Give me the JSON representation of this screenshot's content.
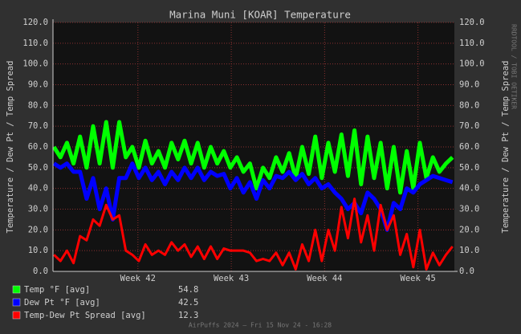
{
  "chart_data": {
    "type": "line",
    "title": "Marina Muni [KOAR] Temperature",
    "y_label": "Temperature / Dew Pt / Temp Spread",
    "watermark": "RRDTOOL / TOBI OETIKER",
    "footer": "AirPuffs 2024 — Fri 15 Nov 24 - 16:28",
    "x": [
      41.1,
      41.17,
      41.24,
      41.31,
      41.38,
      41.45,
      41.52,
      41.59,
      41.66,
      41.73,
      41.8,
      41.87,
      41.94,
      42.01,
      42.08,
      42.15,
      42.22,
      42.29,
      42.36,
      42.43,
      42.5,
      42.57,
      42.64,
      42.71,
      42.78,
      42.85,
      42.92,
      42.99,
      43.06,
      43.13,
      43.2,
      43.27,
      43.34,
      43.41,
      43.48,
      43.55,
      43.62,
      43.69,
      43.76,
      43.83,
      43.9,
      43.97,
      44.04,
      44.11,
      44.18,
      44.25,
      44.32,
      44.39,
      44.46,
      44.53,
      44.6,
      44.67,
      44.74,
      44.81,
      44.88,
      44.95,
      45.02,
      45.09,
      45.16,
      45.23,
      45.3,
      45.37
    ],
    "xlim": [
      41.09,
      45.39
    ],
    "xticks": [
      {
        "value": 42,
        "label": "Week 42"
      },
      {
        "value": 43,
        "label": "Week 43"
      },
      {
        "value": 44,
        "label": "Week 44"
      },
      {
        "value": 45,
        "label": "Week 45"
      }
    ],
    "ylim": [
      0,
      120
    ],
    "yticks": [
      {
        "value": 0,
        "label": "0.0"
      },
      {
        "value": 10,
        "label": "10.0"
      },
      {
        "value": 20,
        "label": "20.0"
      },
      {
        "value": 30,
        "label": "30.0"
      },
      {
        "value": 40,
        "label": "40.0"
      },
      {
        "value": 50,
        "label": "50.0"
      },
      {
        "value": 60,
        "label": "60.0"
      },
      {
        "value": 70,
        "label": "70.0"
      },
      {
        "value": 80,
        "label": "80.0"
      },
      {
        "value": 90,
        "label": "90.0"
      },
      {
        "value": 100,
        "label": "100.0"
      },
      {
        "value": 110,
        "label": "110.0"
      },
      {
        "value": 120,
        "label": "120.0"
      }
    ],
    "grid": true,
    "series": [
      {
        "name": "Temp °F [avg]",
        "color": "#00ff00",
        "avg": 54.8,
        "values": [
          60,
          55,
          62,
          52,
          65,
          50,
          70,
          52,
          72,
          50,
          72,
          55,
          60,
          50,
          63,
          52,
          58,
          50,
          62,
          54,
          63,
          52,
          62,
          50,
          60,
          52,
          58,
          50,
          55,
          48,
          52,
          40,
          50,
          45,
          55,
          48,
          57,
          45,
          60,
          47,
          65,
          45,
          62,
          48,
          66,
          46,
          68,
          42,
          65,
          45,
          62,
          40,
          60,
          38,
          58,
          40,
          62,
          45,
          55,
          48,
          52,
          55
        ]
      },
      {
        "name": "Dew Pt °F [avg]",
        "color": "#0000ff",
        "avg": 42.5,
        "values": [
          52,
          50,
          52,
          48,
          48,
          35,
          45,
          30,
          40,
          25,
          45,
          45,
          52,
          45,
          50,
          44,
          48,
          42,
          48,
          44,
          50,
          45,
          50,
          44,
          48,
          46,
          47,
          40,
          45,
          38,
          43,
          35,
          44,
          40,
          46,
          45,
          48,
          44,
          47,
          42,
          45,
          40,
          42,
          38,
          35,
          30,
          33,
          28,
          38,
          35,
          30,
          20,
          33,
          30,
          40,
          38,
          42,
          44,
          46,
          45,
          44,
          43
        ]
      },
      {
        "name": "Temp-Dew Pt Spread [avg]",
        "color": "#ff0000",
        "avg": 12.3,
        "values": [
          8,
          5,
          10,
          4,
          17,
          15,
          25,
          22,
          32,
          25,
          27,
          10,
          8,
          5,
          13,
          8,
          10,
          8,
          14,
          10,
          13,
          7,
          12,
          6,
          12,
          6,
          11,
          10,
          10,
          10,
          9,
          5,
          6,
          5,
          9,
          3,
          9,
          1,
          13,
          5,
          20,
          5,
          20,
          10,
          31,
          16,
          35,
          14,
          27,
          10,
          32,
          20,
          27,
          8,
          18,
          2,
          20,
          1,
          9,
          3,
          8,
          12
        ]
      }
    ]
  }
}
